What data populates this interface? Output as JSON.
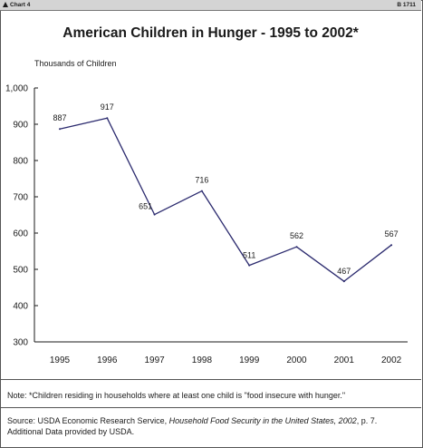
{
  "header": {
    "chart_label": "Chart 4",
    "code": "B 1711"
  },
  "chart_data": {
    "type": "line",
    "title": "American Children in Hunger - 1995 to 2002*",
    "ylabel": "Thousands of Children",
    "xlabel": "",
    "categories": [
      "1995",
      "1996",
      "1997",
      "1998",
      "1999",
      "2000",
      "2001",
      "2002"
    ],
    "values": [
      887,
      917,
      651,
      716,
      511,
      562,
      467,
      567
    ],
    "data_labels": [
      "887",
      "917",
      "651",
      "716",
      "511",
      "562",
      "467",
      "567"
    ],
    "ylim": [
      300,
      1000
    ],
    "yticks": [
      300,
      400,
      500,
      600,
      700,
      800,
      900,
      1000
    ],
    "ytick_labels": [
      "300",
      "400",
      "500",
      "600",
      "700",
      "800",
      "900",
      "1,000"
    ],
    "grid": false,
    "line_color": "#2b2a6e"
  },
  "note": {
    "text": "Note:  *Children residing in households where at least one child is \"food insecure with hunger.\""
  },
  "source": {
    "prefix": "Source:  USDA Economic Research Service, ",
    "publication": "Household Food Security in the United States, 2002",
    "suffix": ", p. 7.",
    "line2": "Additional Data provided by USDA."
  }
}
